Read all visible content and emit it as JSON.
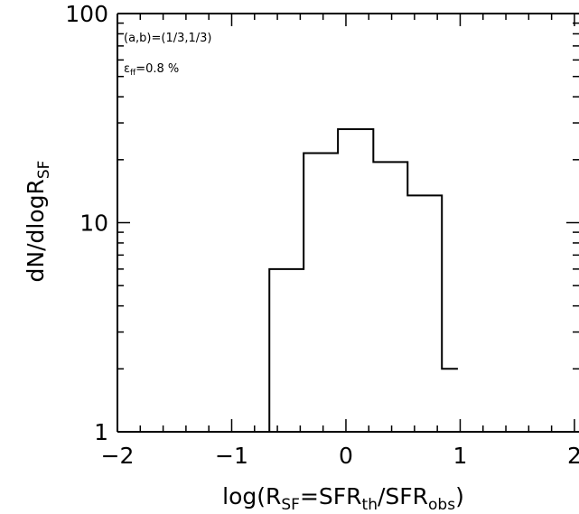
{
  "chart_data": {
    "type": "histogram",
    "xlim": [
      -2,
      2
    ],
    "ylim": [
      1,
      100
    ],
    "yscale": "log",
    "grid": false,
    "x_ticks": [
      {
        "value": -2,
        "label": "−2"
      },
      {
        "value": -1,
        "label": "−1"
      },
      {
        "value": 0,
        "label": "0"
      },
      {
        "value": 1,
        "label": "1"
      },
      {
        "value": 2,
        "label": "2"
      }
    ],
    "y_ticks": [
      {
        "value": 1,
        "label": "1"
      },
      {
        "value": 10,
        "label": "10"
      },
      {
        "value": 100,
        "label": "100"
      }
    ],
    "xlabel": {
      "prefix": "log(R",
      "sub1": "SF",
      "mid1": "=SFR",
      "sub2": "th",
      "mid2": "/SFR",
      "sub3": "obs",
      "suffix": ")"
    },
    "ylabel": {
      "main": "dN/dlogR",
      "sub": "SF"
    },
    "annotations": [
      {
        "text": "(a,b)=(1/3,1/3)"
      },
      {
        "symbol": "ε",
        "sub": "ff",
        "rest": "=0.8 %"
      }
    ],
    "bins": [
      {
        "x0": -2.0,
        "x1": -0.67,
        "value": 1
      },
      {
        "x0": -0.67,
        "x1": -0.37,
        "value": 6
      },
      {
        "x0": -0.37,
        "x1": -0.07,
        "value": 21.5
      },
      {
        "x0": -0.07,
        "x1": 0.24,
        "value": 28
      },
      {
        "x0": 0.24,
        "x1": 0.54,
        "value": 19.5
      },
      {
        "x0": 0.54,
        "x1": 0.84,
        "value": 13.5
      },
      {
        "x0": 0.84,
        "x1": 0.98,
        "value": 2
      }
    ]
  }
}
